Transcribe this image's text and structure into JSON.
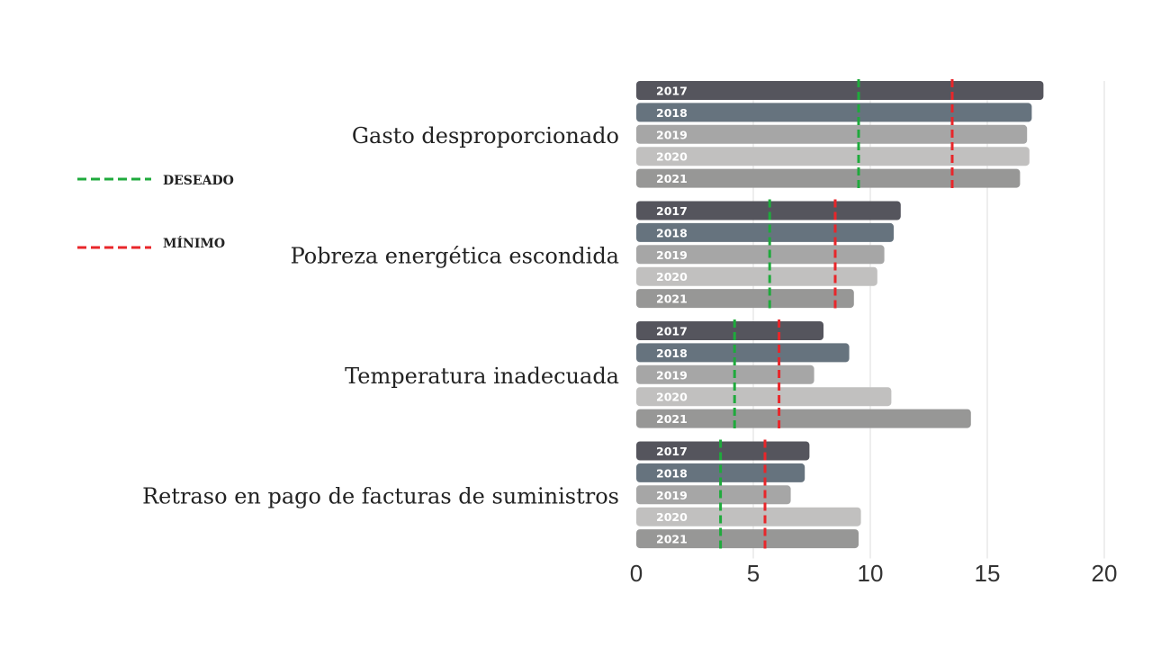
{
  "chart_data": {
    "type": "bar",
    "orientation": "horizontal",
    "categories": [
      "Gasto desproporcionado",
      "Pobreza energética escondida",
      "Temperatura inadecuada",
      "Retraso en pago de facturas de suministros"
    ],
    "series": [
      {
        "name": "2017",
        "color": "#55555d",
        "values": [
          17.4,
          11.3,
          8.0,
          7.4
        ]
      },
      {
        "name": "2018",
        "color": "#66737e",
        "values": [
          16.9,
          11.0,
          9.1,
          7.2
        ]
      },
      {
        "name": "2019",
        "color": "#a6a6a6",
        "values": [
          16.7,
          10.6,
          7.6,
          6.6
        ]
      },
      {
        "name": "2020",
        "color": "#c1c0bf",
        "values": [
          16.8,
          10.3,
          10.9,
          9.6
        ]
      },
      {
        "name": "2021",
        "color": "#979796",
        "values": [
          16.4,
          9.3,
          14.3,
          9.5
        ]
      }
    ],
    "reference_lines": [
      {
        "name": "DESEADO",
        "color": "#1faa3c",
        "style": "dashed",
        "values": [
          9.5,
          5.7,
          4.2,
          3.6
        ]
      },
      {
        "name": "MÍNIMO",
        "color": "#e8262a",
        "style": "dashed",
        "values": [
          13.5,
          8.5,
          6.1,
          5.5
        ]
      }
    ],
    "xlim": [
      0,
      20
    ],
    "xticks": [
      "0",
      "5",
      "10",
      "15",
      "20"
    ],
    "grid": "vertical",
    "legend_position": "left"
  }
}
